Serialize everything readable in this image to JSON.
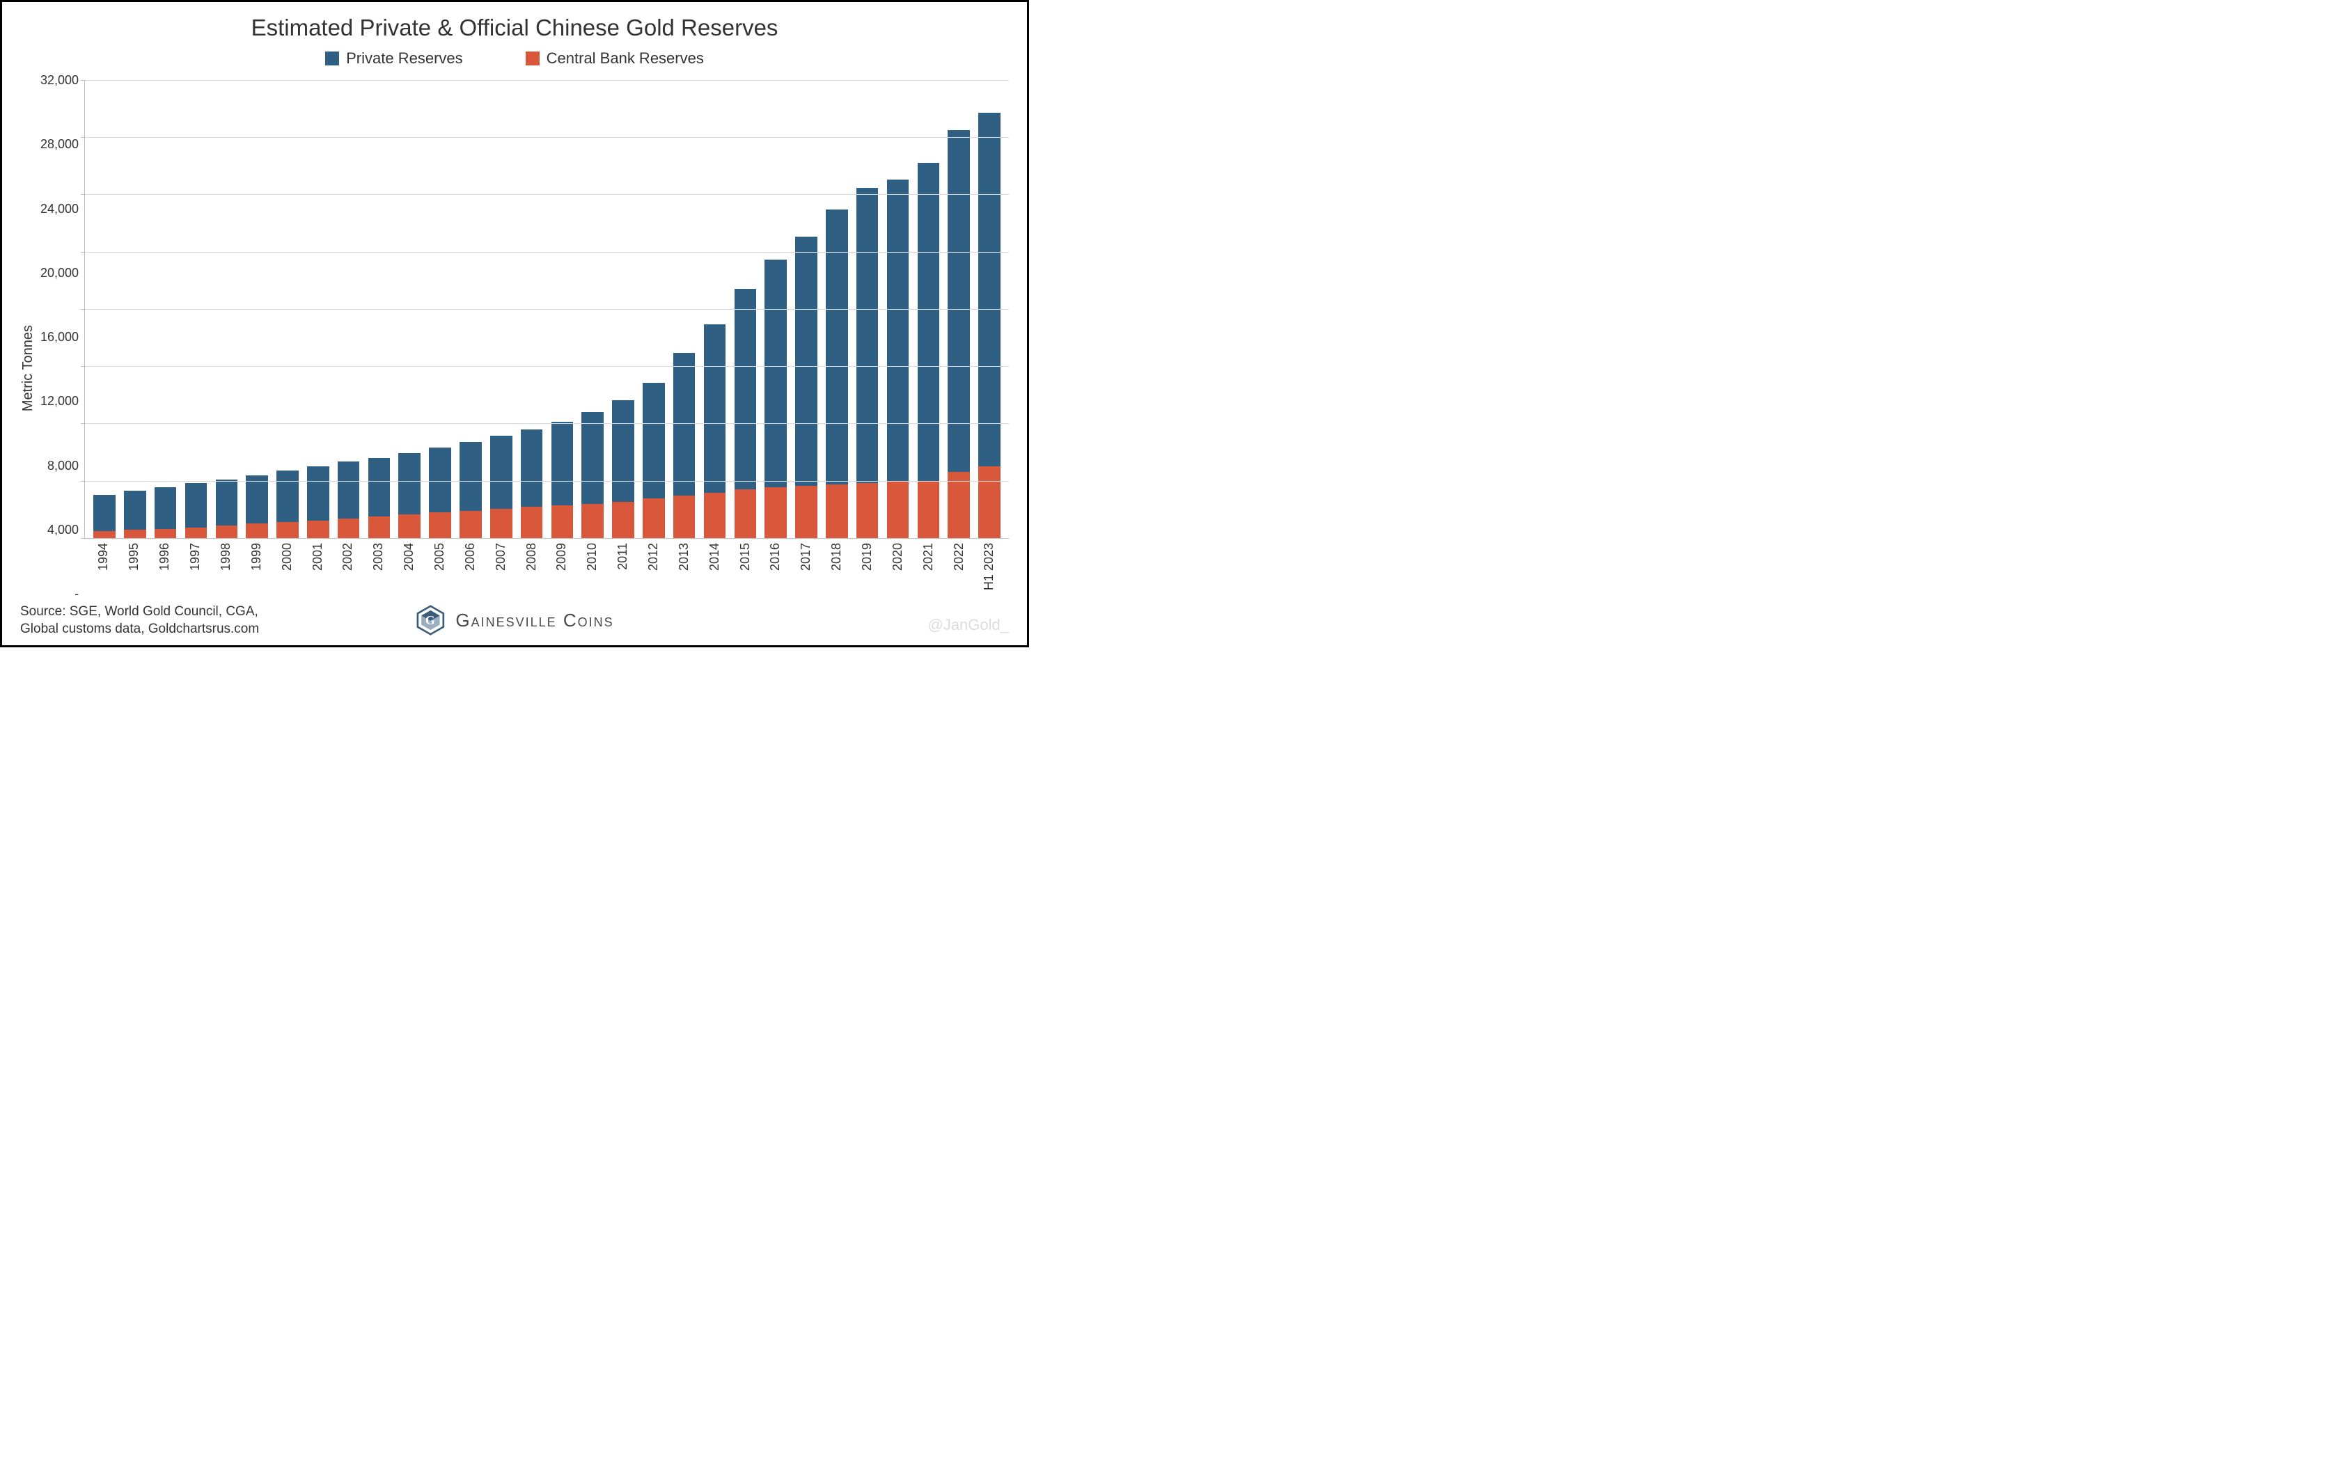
{
  "chart": {
    "type": "stacked-bar",
    "title": "Estimated Private & Official Chinese Gold Reserves",
    "title_fontsize": 33,
    "ylabel": "Metric Tonnes",
    "label_fontsize": 20,
    "background_color": "#ffffff",
    "grid_color": "#d9d9d9",
    "axis_color": "#bfbfbf",
    "text_color": "#333333",
    "bar_width": 0.72,
    "ylim": [
      0,
      32000
    ],
    "ytick_step": 4000,
    "yticks": [
      "-",
      "4,000",
      "8,000",
      "12,000",
      "16,000",
      "20,000",
      "24,000",
      "28,000",
      "32,000"
    ],
    "categories": [
      "1994",
      "1995",
      "1996",
      "1997",
      "1998",
      "1999",
      "2000",
      "2001",
      "2002",
      "2003",
      "2004",
      "2005",
      "2006",
      "2007",
      "2008",
      "2009",
      "2010",
      "2011",
      "2012",
      "2013",
      "2014",
      "2015",
      "2016",
      "2017",
      "2018",
      "2019",
      "2020",
      "2021",
      "2022",
      "H1 2023"
    ],
    "series": [
      {
        "name": "Private Reserves",
        "color": "#2f5f82",
        "values": [
          2500,
          2700,
          2900,
          3100,
          3250,
          3400,
          3600,
          3800,
          4000,
          4100,
          4300,
          4500,
          4800,
          5100,
          5400,
          5800,
          6400,
          7100,
          8100,
          10000,
          11800,
          14000,
          15900,
          17400,
          19200,
          20600,
          21100,
          22200,
          23900,
          24700
        ]
      },
      {
        "name": "Central Bank Reserves",
        "color": "#d9573b",
        "values": [
          500,
          600,
          650,
          750,
          850,
          1000,
          1100,
          1200,
          1350,
          1500,
          1650,
          1800,
          1900,
          2050,
          2200,
          2300,
          2400,
          2550,
          2750,
          2950,
          3150,
          3400,
          3550,
          3650,
          3750,
          3850,
          3950,
          4000,
          4600,
          5000
        ]
      }
    ],
    "legend": {
      "position": "top",
      "fontsize": 22
    }
  },
  "footer": {
    "source_line1": "Source: SGE, World Gold Council, CGA,",
    "source_line2": "Global customs data, Goldchartsrus.com",
    "brand_name": "Gainesville Coins",
    "brand_color": "#4a4a4a",
    "logo_colors": {
      "a": "#3a5b7a",
      "b": "#9aaebf"
    },
    "watermark": "@JanGold_",
    "watermark_color": "#dcdcdc"
  }
}
